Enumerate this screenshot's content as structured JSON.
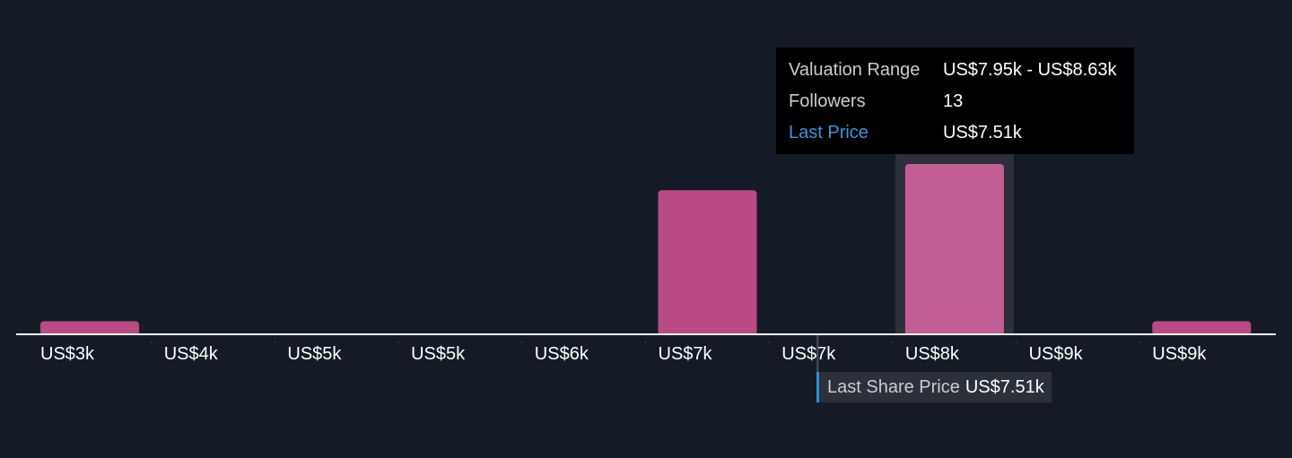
{
  "chart_data": {
    "type": "bar",
    "categories": [
      "US$3k",
      "US$4k",
      "US$5k",
      "US$5k",
      "US$6k",
      "US$7k",
      "US$7k",
      "US$8k",
      "US$9k",
      "US$9k"
    ],
    "values": [
      1,
      0,
      0,
      0,
      0,
      11,
      0,
      13,
      0,
      1
    ],
    "ylim": [
      0,
      13
    ],
    "highlighted_index": 7,
    "last_price_position": 6.4,
    "colors": {
      "bar": "#b94a86",
      "bar_highlight": "#c45e97",
      "highlight_band": "#2b303b",
      "axis": "#ffffff",
      "accent": "#3a97d9"
    }
  },
  "tooltip": {
    "rows": [
      {
        "label": "Valuation Range",
        "value": "US$7.95k - US$8.63k"
      },
      {
        "label": "Followers",
        "value": "13"
      },
      {
        "label": "Last Price",
        "value": "US$7.51k"
      }
    ]
  },
  "last_share_price": {
    "label": "Last Share Price",
    "value": "US$7.51k"
  }
}
